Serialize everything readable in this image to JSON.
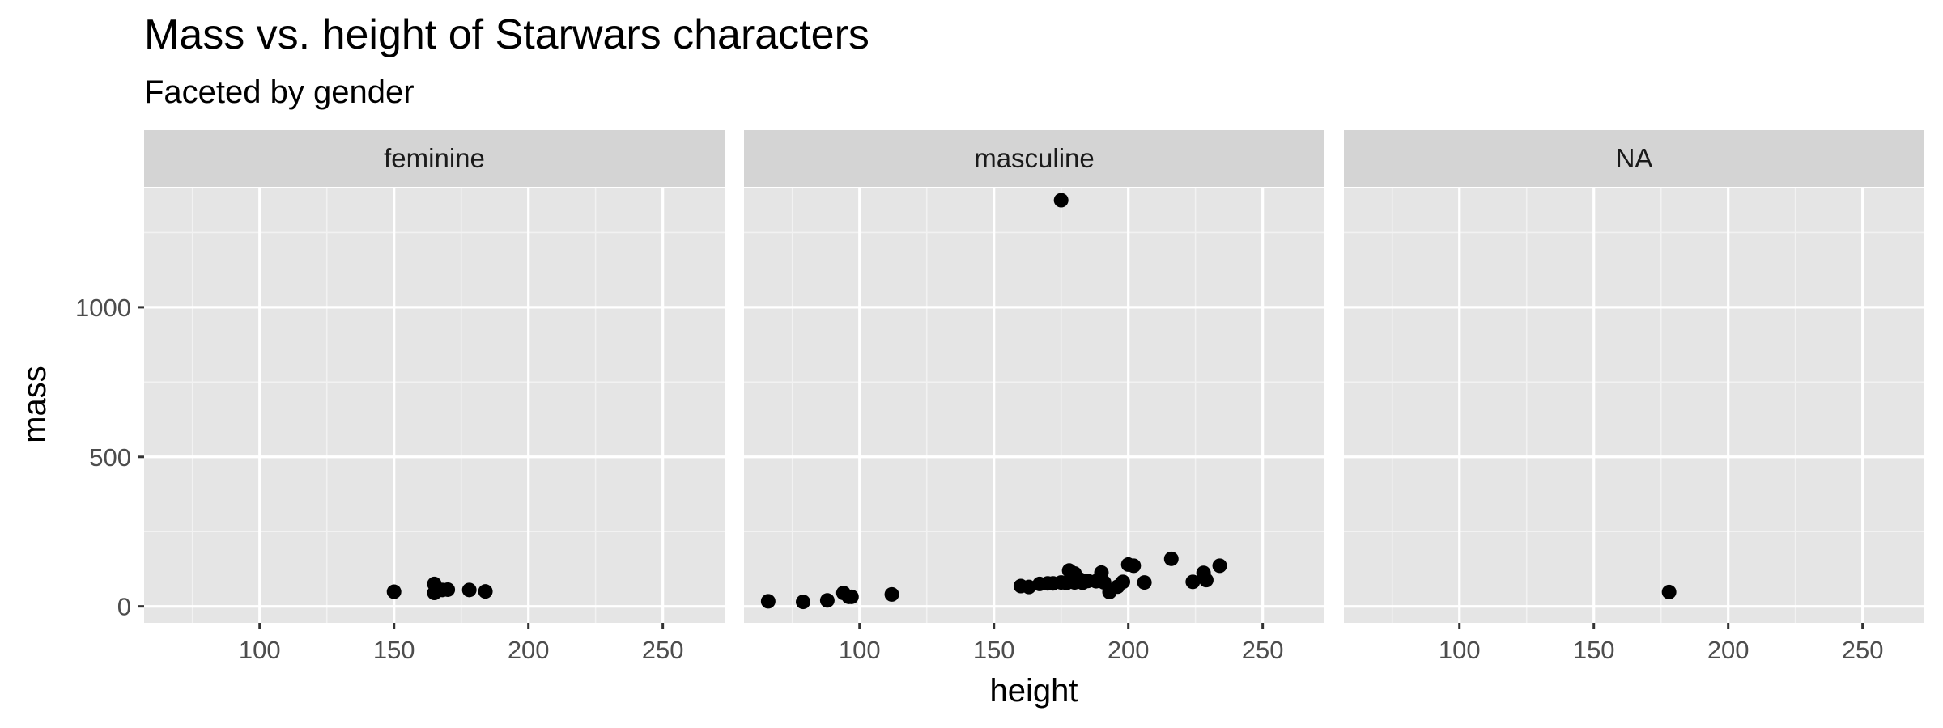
{
  "chart_data": {
    "type": "scatter",
    "title": "Mass vs. height of Starwars characters",
    "subtitle": "Faceted by gender",
    "xlabel": "height",
    "ylabel": "mass",
    "xlim": [
      57,
      273
    ],
    "ylim": [
      -55,
      1400
    ],
    "x_ticks": [
      100,
      150,
      200,
      250
    ],
    "y_ticks": [
      0,
      500,
      1000
    ],
    "grid": true,
    "point_color": "#000000",
    "panel_background": "#e5e5e5",
    "strip_background": "#d4d4d4",
    "facets": [
      {
        "label": "feminine",
        "points": [
          {
            "x": 150,
            "y": 49
          },
          {
            "x": 165,
            "y": 75
          },
          {
            "x": 165,
            "y": 45
          },
          {
            "x": 167,
            "y": 55
          },
          {
            "x": 168,
            "y": 55
          },
          {
            "x": 170,
            "y": 56
          },
          {
            "x": 178,
            "y": 55
          },
          {
            "x": 184,
            "y": 50
          }
        ]
      },
      {
        "label": "masculine",
        "points": [
          {
            "x": 66,
            "y": 17
          },
          {
            "x": 79,
            "y": 15
          },
          {
            "x": 88,
            "y": 20
          },
          {
            "x": 94,
            "y": 45
          },
          {
            "x": 96,
            "y": 32
          },
          {
            "x": 97,
            "y": 32
          },
          {
            "x": 112,
            "y": 40
          },
          {
            "x": 160,
            "y": 68
          },
          {
            "x": 163,
            "y": 65
          },
          {
            "x": 167,
            "y": 75
          },
          {
            "x": 170,
            "y": 77
          },
          {
            "x": 172,
            "y": 77
          },
          {
            "x": 175,
            "y": 80
          },
          {
            "x": 175,
            "y": 1358
          },
          {
            "x": 177,
            "y": 78
          },
          {
            "x": 178,
            "y": 120
          },
          {
            "x": 180,
            "y": 110
          },
          {
            "x": 180,
            "y": 80
          },
          {
            "x": 182,
            "y": 90
          },
          {
            "x": 183,
            "y": 79
          },
          {
            "x": 185,
            "y": 85
          },
          {
            "x": 188,
            "y": 84
          },
          {
            "x": 190,
            "y": 113
          },
          {
            "x": 191,
            "y": 80
          },
          {
            "x": 193,
            "y": 48
          },
          {
            "x": 196,
            "y": 66
          },
          {
            "x": 198,
            "y": 82
          },
          {
            "x": 200,
            "y": 140
          },
          {
            "x": 202,
            "y": 136
          },
          {
            "x": 206,
            "y": 80
          },
          {
            "x": 216,
            "y": 159
          },
          {
            "x": 224,
            "y": 82
          },
          {
            "x": 228,
            "y": 112
          },
          {
            "x": 229,
            "y": 88
          },
          {
            "x": 234,
            "y": 136
          }
        ]
      },
      {
        "label": "NA",
        "points": [
          {
            "x": 178,
            "y": 48
          }
        ]
      }
    ]
  }
}
